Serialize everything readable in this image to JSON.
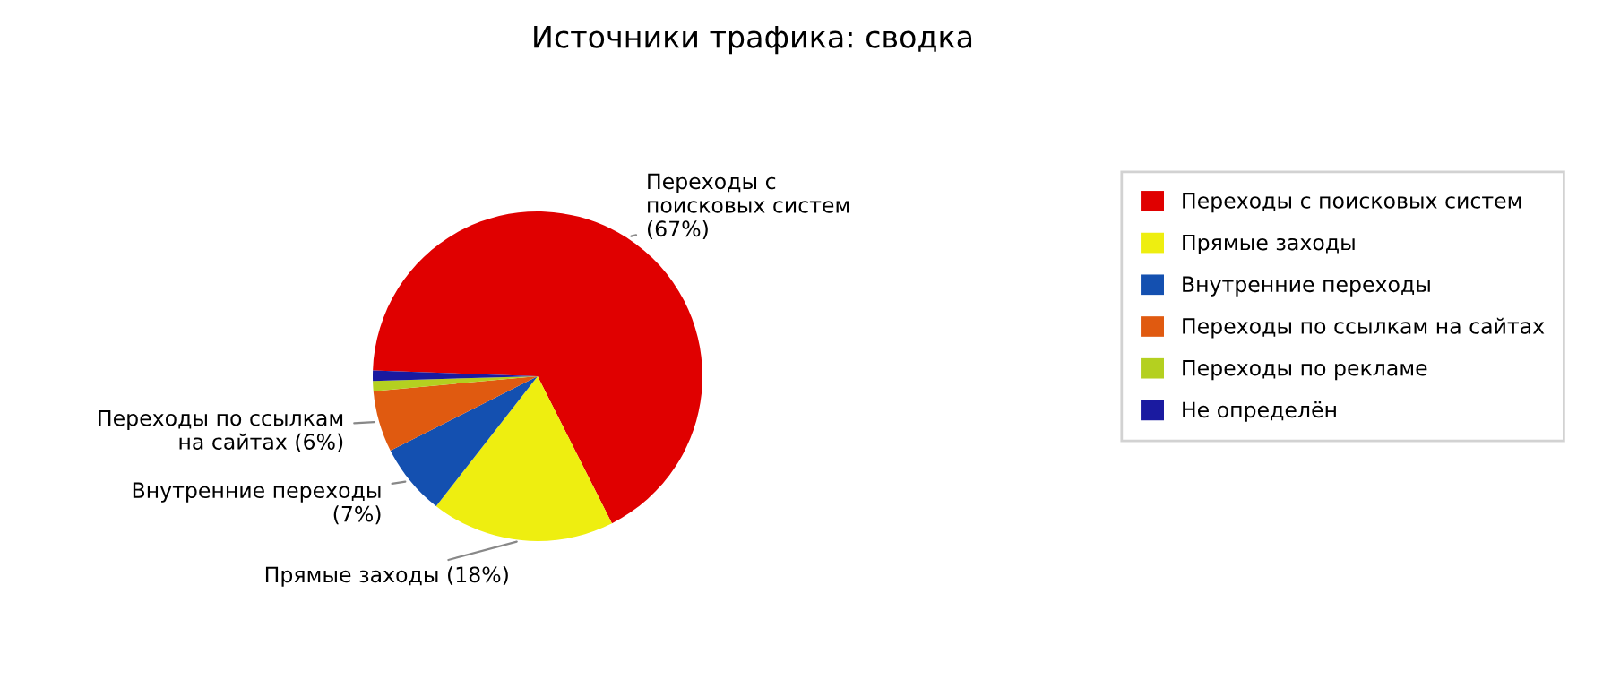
{
  "chart_data": {
    "type": "pie",
    "title": "Источники трафика: сводка",
    "categories": [
      "Переходы с поисковых систем",
      "Прямые заходы",
      "Внутренние переходы",
      "Переходы по ссылкам на сайтах",
      "Переходы по рекламе",
      "Не определён"
    ],
    "values": [
      67,
      18,
      7,
      6,
      1,
      1
    ],
    "colors": [
      "#e00000",
      "#eeee10",
      "#1450b0",
      "#e05a10",
      "#b4d020",
      "#1a1aa0"
    ],
    "value_labels": [
      "Переходы с\nпоисковых систем\n(67%)",
      "Прямые заходы (18%)",
      "Внутренние переходы\n(7%)",
      "Переходы по ссылкам\nна сайтах (6%)",
      null,
      null
    ],
    "legend": "right"
  }
}
